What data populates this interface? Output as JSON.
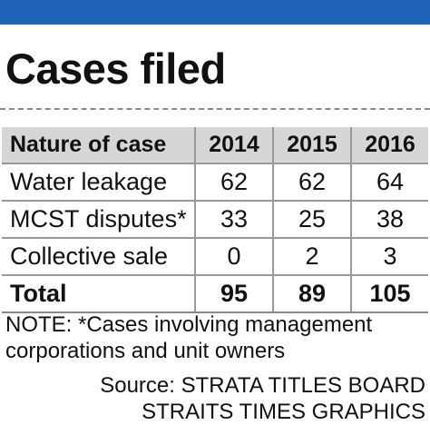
{
  "colors": {
    "top_band": "#1f63b7",
    "header_row_bg": "#d6d6d6",
    "grid_lines": "#999999"
  },
  "chart_data": {
    "type": "table",
    "title": "Cases filed",
    "columns": [
      "Nature of case",
      "2014",
      "2015",
      "2016"
    ],
    "rows": [
      {
        "label": "Water leakage",
        "values": [
          "62",
          "62",
          "64"
        ]
      },
      {
        "label": "MCST disputes*",
        "values": [
          "33",
          "25",
          "38"
        ]
      },
      {
        "label": "Collective sale",
        "values": [
          "0",
          "2",
          "3"
        ]
      }
    ],
    "total": {
      "label": "Total",
      "values": [
        "95",
        "89",
        "105"
      ]
    },
    "note_lines": [
      "NOTE: *Cases involving management",
      "corporations and unit owners"
    ],
    "source_lines": [
      "Source: STRATA TITLES BOARD",
      "STRAITS TIMES GRAPHICS"
    ]
  }
}
